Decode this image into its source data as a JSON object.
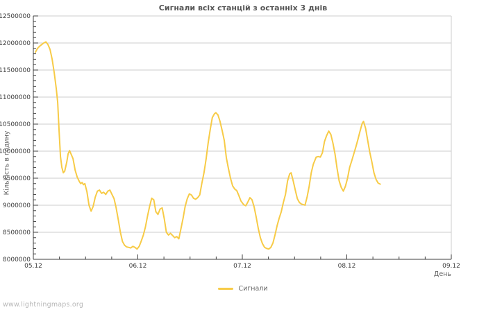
{
  "title": "Сигнали всіх станцій з останніх 3 днів",
  "watermark": "www.lightningmaps.org",
  "legend": {
    "label": "Сигнали"
  },
  "colors": {
    "background": "#FFFFFF",
    "line": "#F7CB47",
    "grid": "#CCCCCC",
    "axis": "#3C3C3C",
    "title_text": "#555555",
    "muted_text": "#666666",
    "watermark": "#B8B8B8"
  },
  "chart_data": {
    "type": "line",
    "title": "Сигнали всіх станцій з останніх 3 днів",
    "xlabel": "День",
    "ylabel": "Кількість в годину",
    "x_ticks": [
      "05.12",
      "06.12",
      "07.12",
      "08.12",
      "09.12"
    ],
    "x_range_days": [
      0,
      4
    ],
    "x_minor_step_days": 0.25,
    "ylim": [
      8000000,
      12500000
    ],
    "y_tick_step": 500000,
    "y_minor_step": 100000,
    "y_tick_labels": [
      "8000000",
      "8500000",
      "9000000",
      "9500000",
      "10000000",
      "10500000",
      "11000000",
      "11500000",
      "12000000",
      "12500000"
    ],
    "grid": "horizontal",
    "legend_position": "bottom-center",
    "series": [
      {
        "name": "Сигнали",
        "color": "#F7CB47",
        "points": [
          [
            0.02,
            11830000
          ],
          [
            0.04,
            11900000
          ],
          [
            0.06,
            11940000
          ],
          [
            0.08,
            11970000
          ],
          [
            0.1,
            12000000
          ],
          [
            0.12,
            12020000
          ],
          [
            0.14,
            11970000
          ],
          [
            0.16,
            11880000
          ],
          [
            0.18,
            11700000
          ],
          [
            0.2,
            11450000
          ],
          [
            0.22,
            11150000
          ],
          [
            0.233,
            10900000
          ],
          [
            0.247,
            10350000
          ],
          [
            0.26,
            9900000
          ],
          [
            0.273,
            9700000
          ],
          [
            0.287,
            9600000
          ],
          [
            0.3,
            9630000
          ],
          [
            0.32,
            9800000
          ],
          [
            0.333,
            9950000
          ],
          [
            0.347,
            10010000
          ],
          [
            0.36,
            9950000
          ],
          [
            0.38,
            9860000
          ],
          [
            0.4,
            9650000
          ],
          [
            0.42,
            9520000
          ],
          [
            0.44,
            9440000
          ],
          [
            0.453,
            9400000
          ],
          [
            0.467,
            9420000
          ],
          [
            0.48,
            9380000
          ],
          [
            0.493,
            9400000
          ],
          [
            0.513,
            9250000
          ],
          [
            0.533,
            9000000
          ],
          [
            0.553,
            8890000
          ],
          [
            0.573,
            8980000
          ],
          [
            0.593,
            9150000
          ],
          [
            0.613,
            9260000
          ],
          [
            0.633,
            9280000
          ],
          [
            0.653,
            9220000
          ],
          [
            0.673,
            9240000
          ],
          [
            0.693,
            9200000
          ],
          [
            0.713,
            9260000
          ],
          [
            0.733,
            9280000
          ],
          [
            0.753,
            9200000
          ],
          [
            0.773,
            9120000
          ],
          [
            0.793,
            8950000
          ],
          [
            0.813,
            8730000
          ],
          [
            0.833,
            8500000
          ],
          [
            0.853,
            8330000
          ],
          [
            0.873,
            8260000
          ],
          [
            0.893,
            8230000
          ],
          [
            0.913,
            8220000
          ],
          [
            0.933,
            8210000
          ],
          [
            0.953,
            8240000
          ],
          [
            0.973,
            8220000
          ],
          [
            0.993,
            8190000
          ],
          [
            1.013,
            8240000
          ],
          [
            1.033,
            8340000
          ],
          [
            1.053,
            8450000
          ],
          [
            1.073,
            8600000
          ],
          [
            1.093,
            8800000
          ],
          [
            1.113,
            8980000
          ],
          [
            1.133,
            9130000
          ],
          [
            1.153,
            9100000
          ],
          [
            1.173,
            8880000
          ],
          [
            1.193,
            8830000
          ],
          [
            1.213,
            8930000
          ],
          [
            1.233,
            8950000
          ],
          [
            1.253,
            8750000
          ],
          [
            1.273,
            8500000
          ],
          [
            1.293,
            8450000
          ],
          [
            1.313,
            8480000
          ],
          [
            1.333,
            8440000
          ],
          [
            1.353,
            8400000
          ],
          [
            1.373,
            8420000
          ],
          [
            1.393,
            8380000
          ],
          [
            1.413,
            8570000
          ],
          [
            1.433,
            8760000
          ],
          [
            1.453,
            8980000
          ],
          [
            1.473,
            9120000
          ],
          [
            1.493,
            9210000
          ],
          [
            1.513,
            9190000
          ],
          [
            1.533,
            9130000
          ],
          [
            1.553,
            9110000
          ],
          [
            1.573,
            9140000
          ],
          [
            1.593,
            9190000
          ],
          [
            1.613,
            9410000
          ],
          [
            1.633,
            9600000
          ],
          [
            1.653,
            9850000
          ],
          [
            1.673,
            10150000
          ],
          [
            1.693,
            10400000
          ],
          [
            1.713,
            10620000
          ],
          [
            1.733,
            10690000
          ],
          [
            1.747,
            10710000
          ],
          [
            1.767,
            10670000
          ],
          [
            1.787,
            10550000
          ],
          [
            1.807,
            10380000
          ],
          [
            1.827,
            10200000
          ],
          [
            1.847,
            9880000
          ],
          [
            1.867,
            9680000
          ],
          [
            1.887,
            9500000
          ],
          [
            1.907,
            9360000
          ],
          [
            1.927,
            9300000
          ],
          [
            1.947,
            9270000
          ],
          [
            1.967,
            9180000
          ],
          [
            1.987,
            9080000
          ],
          [
            2.013,
            9010000
          ],
          [
            2.033,
            8990000
          ],
          [
            2.053,
            9060000
          ],
          [
            2.073,
            9140000
          ],
          [
            2.093,
            9100000
          ],
          [
            2.113,
            8970000
          ],
          [
            2.133,
            8780000
          ],
          [
            2.153,
            8570000
          ],
          [
            2.173,
            8400000
          ],
          [
            2.193,
            8290000
          ],
          [
            2.213,
            8220000
          ],
          [
            2.233,
            8200000
          ],
          [
            2.253,
            8190000
          ],
          [
            2.273,
            8220000
          ],
          [
            2.293,
            8300000
          ],
          [
            2.313,
            8450000
          ],
          [
            2.333,
            8620000
          ],
          [
            2.353,
            8760000
          ],
          [
            2.373,
            8880000
          ],
          [
            2.393,
            9050000
          ],
          [
            2.413,
            9200000
          ],
          [
            2.433,
            9450000
          ],
          [
            2.453,
            9580000
          ],
          [
            2.467,
            9600000
          ],
          [
            2.487,
            9450000
          ],
          [
            2.507,
            9280000
          ],
          [
            2.527,
            9120000
          ],
          [
            2.547,
            9050000
          ],
          [
            2.567,
            9020000
          ],
          [
            2.587,
            9010000
          ],
          [
            2.6,
            9000000
          ],
          [
            2.62,
            9150000
          ],
          [
            2.64,
            9350000
          ],
          [
            2.66,
            9600000
          ],
          [
            2.68,
            9760000
          ],
          [
            2.707,
            9890000
          ],
          [
            2.727,
            9900000
          ],
          [
            2.747,
            9890000
          ],
          [
            2.767,
            9970000
          ],
          [
            2.787,
            10180000
          ],
          [
            2.807,
            10290000
          ],
          [
            2.827,
            10370000
          ],
          [
            2.847,
            10310000
          ],
          [
            2.867,
            10150000
          ],
          [
            2.887,
            9950000
          ],
          [
            2.907,
            9680000
          ],
          [
            2.927,
            9450000
          ],
          [
            2.947,
            9330000
          ],
          [
            2.967,
            9260000
          ],
          [
            2.987,
            9350000
          ],
          [
            3.007,
            9500000
          ],
          [
            3.027,
            9700000
          ],
          [
            3.047,
            9820000
          ],
          [
            3.067,
            9950000
          ],
          [
            3.087,
            10080000
          ],
          [
            3.107,
            10220000
          ],
          [
            3.127,
            10370000
          ],
          [
            3.147,
            10510000
          ],
          [
            3.16,
            10550000
          ],
          [
            3.18,
            10420000
          ],
          [
            3.2,
            10200000
          ],
          [
            3.22,
            9980000
          ],
          [
            3.24,
            9800000
          ],
          [
            3.26,
            9600000
          ],
          [
            3.28,
            9480000
          ],
          [
            3.3,
            9410000
          ],
          [
            3.32,
            9390000
          ]
        ]
      }
    ]
  }
}
